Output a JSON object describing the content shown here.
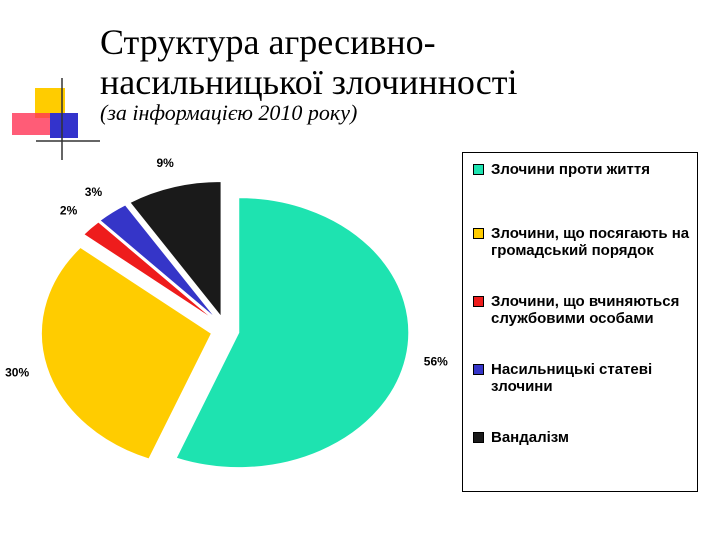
{
  "chart_data": {
    "type": "pie",
    "title": "Структура агресивно-насильницької злочинності",
    "subtitle": "(за інформацією 2010 року)",
    "categories": [
      "Злочини проти життя",
      "Злочини, що посягають на громадський порядок",
      "Злочини, що вчиняються службовими особами",
      "Насильницькі статеві злочини",
      "Вандалізм"
    ],
    "values": [
      56,
      30,
      2,
      3,
      9
    ],
    "value_labels": [
      "56%",
      "30%",
      "2%",
      "3%",
      "9%"
    ],
    "colors": [
      "#1ee3b0",
      "#ffcc00",
      "#ee1c1c",
      "#3535c8",
      "#1a1a1a"
    ]
  }
}
